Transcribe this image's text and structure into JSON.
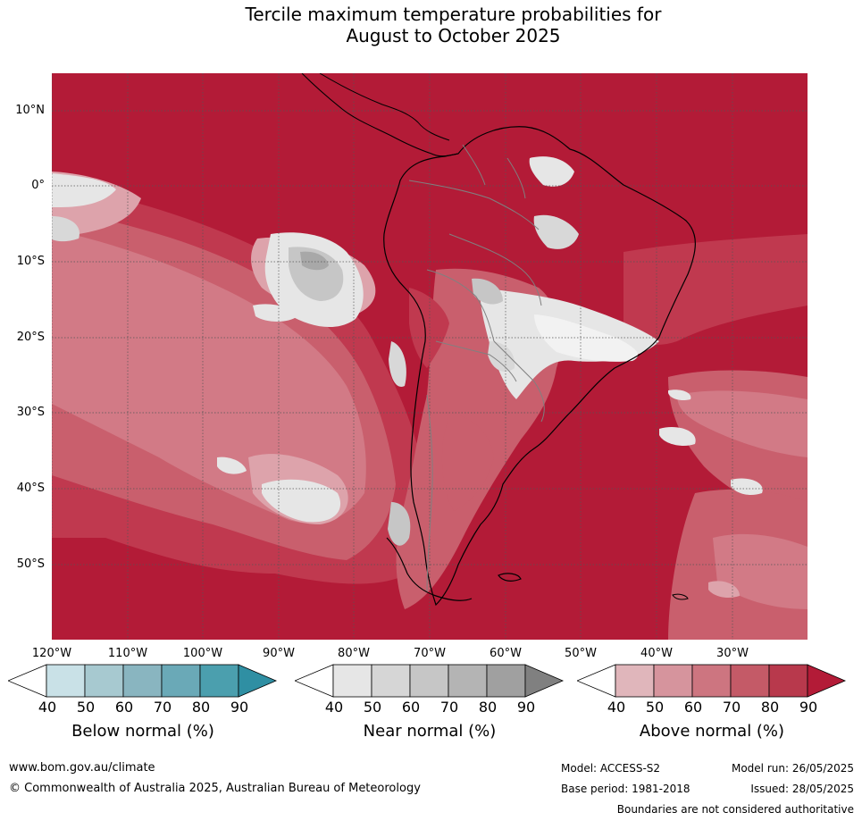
{
  "title": {
    "line1": "Tercile maximum temperature probabilities for",
    "line2": "August to October 2025"
  },
  "map": {
    "lat_labels": [
      "10°N",
      "0°",
      "10°S",
      "20°S",
      "30°S",
      "40°S",
      "50°S"
    ],
    "lon_labels": [
      "120°W",
      "110°W",
      "100°W",
      "90°W",
      "80°W",
      "70°W",
      "60°W",
      "50°W",
      "40°W",
      "30°W"
    ],
    "colors": {
      "above_90": "#b31b37",
      "above_80": "#c0394f",
      "above_70": "#c95f6d",
      "above_60": "#d27a86",
      "above_50": "#dda3ab",
      "near_50": "#e6e6e6",
      "near_60": "#d8d8d8",
      "near_70": "#c6c6c6",
      "near_80": "#a8a8a8",
      "coast": "#000000",
      "borders": "#808080"
    }
  },
  "colorbars": [
    {
      "title": "Below normal (%)",
      "ticks": [
        "40",
        "50",
        "60",
        "70",
        "80",
        "90"
      ],
      "colors": [
        "#ffffff",
        "#c9e1e7",
        "#a7c9d0",
        "#89b5c0",
        "#6aa9b7",
        "#4b9fae",
        "#2f8fa3"
      ]
    },
    {
      "title": "Near normal (%)",
      "ticks": [
        "40",
        "50",
        "60",
        "70",
        "80",
        "90"
      ],
      "colors": [
        "#ffffff",
        "#e6e6e6",
        "#d6d6d6",
        "#c6c6c6",
        "#b4b4b4",
        "#a0a0a0",
        "#808080"
      ]
    },
    {
      "title": "Above normal (%)",
      "ticks": [
        "40",
        "50",
        "60",
        "70",
        "80",
        "90"
      ],
      "colors": [
        "#ffffff",
        "#e0b6bb",
        "#d6949d",
        "#cd7580",
        "#c45a67",
        "#b8394c",
        "#b31b37"
      ]
    }
  ],
  "footer": {
    "website": "www.bom.gov.au/climate",
    "copyright": "© Commonwealth of Australia 2025, Australian Bureau of Meteorology",
    "model": "Model: ACCESS-S2",
    "model_run": "Model run: 26/05/2025",
    "base_period": "Base period: 1981-2018",
    "issued": "Issued: 28/05/2025",
    "disclaimer": "Boundaries are not considered authoritative"
  }
}
